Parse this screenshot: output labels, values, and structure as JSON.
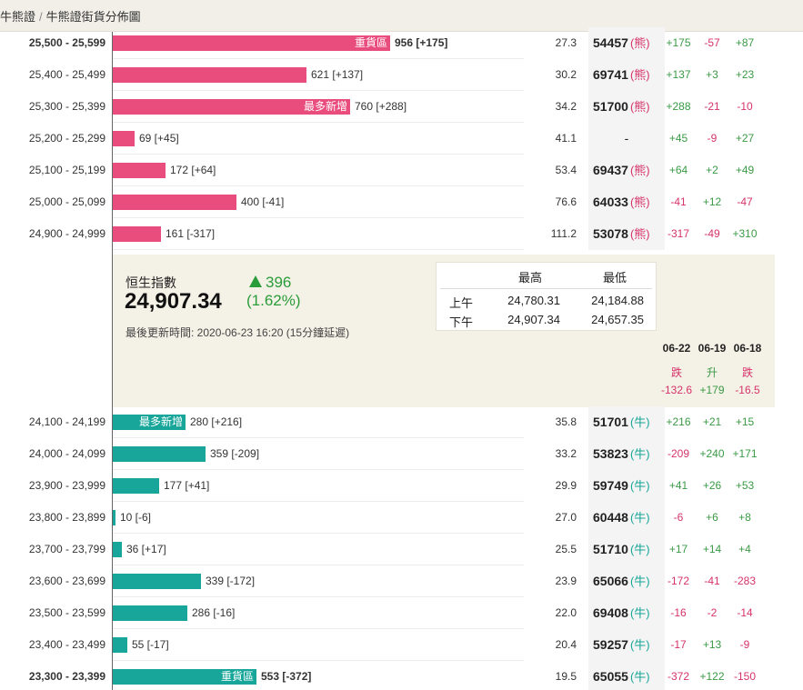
{
  "breadcrumb": {
    "parent": "牛熊證",
    "current": "牛熊證街貨分佈圖"
  },
  "colors": {
    "bear": "#e94d7d",
    "bull": "#17a699",
    "positive": "#3a9a45",
    "negative": "#d6336c"
  },
  "bear_rows": [
    {
      "range": "25,500 - 25,599",
      "qty": "956 [+175]",
      "ratio": "27.3",
      "code": "54457",
      "type": "(熊)",
      "tag": "重貨區",
      "bold": true,
      "level": 0.63,
      "chg": [
        "+175",
        "-57",
        "+87"
      ]
    },
    {
      "range": "25,400 - 25,499",
      "qty": "621 [+137]",
      "ratio": "30.2",
      "code": "69741",
      "type": "(熊)",
      "tag": "",
      "level": 0.44,
      "chg": [
        "+137",
        "+3",
        "+23"
      ]
    },
    {
      "range": "25,300 - 25,399",
      "qty": "760 [+288]",
      "ratio": "34.2",
      "code": "51700",
      "type": "(熊)",
      "tag": "最多新增",
      "level": 0.54,
      "chg": [
        "+288",
        "-21",
        "-10"
      ]
    },
    {
      "range": "25,200 - 25,299",
      "qty": "69 [+45]",
      "ratio": "41.1",
      "code": "-",
      "type": "",
      "tag": "",
      "level": 0.05,
      "chg": [
        "+45",
        "-9",
        "+27"
      ]
    },
    {
      "range": "25,100 - 25,199",
      "qty": "172 [+64]",
      "ratio": "53.4",
      "code": "69437",
      "type": "(熊)",
      "tag": "",
      "level": 0.12,
      "chg": [
        "+64",
        "+2",
        "+49"
      ]
    },
    {
      "range": "25,000 - 25,099",
      "qty": "400 [-41]",
      "ratio": "76.6",
      "code": "64033",
      "type": "(熊)",
      "tag": "",
      "level": 0.28,
      "chg": [
        "-41",
        "+12",
        "-47"
      ]
    },
    {
      "range": "24,900 - 24,999",
      "qty": "161 [-317]",
      "ratio": "111.2",
      "code": "53078",
      "type": "(熊)",
      "tag": "",
      "level": 0.11,
      "chg": [
        "-317",
        "-49",
        "+310"
      ]
    }
  ],
  "index": {
    "name": "恒生指數",
    "value": "24,907.34",
    "change": "396",
    "change_pct": "(1.62%)",
    "updated": "最後更新時間: 2020-06-23 16:20 (15分鐘延遲)",
    "high_low": {
      "header_high": "最高",
      "header_low": "最低",
      "am_label": "上午",
      "am_high": "24,780.31",
      "am_low": "24,184.88",
      "pm_label": "下午",
      "pm_high": "24,907.34",
      "pm_low": "24,657.35"
    },
    "history": [
      {
        "date": "06-22",
        "dir": "跌",
        "points": "-132.6",
        "sign": "neg"
      },
      {
        "date": "06-19",
        "dir": "升",
        "points": "+179",
        "sign": "pos"
      },
      {
        "date": "06-18",
        "dir": "跌",
        "points": "-16.5",
        "sign": "neg"
      }
    ]
  },
  "bull_rows": [
    {
      "range": "24,100 - 24,199",
      "qty": "280 [+216]",
      "ratio": "35.8",
      "code": "51701",
      "type": "(牛)",
      "tag": "最多新增",
      "level": 0.165,
      "chg": [
        "+216",
        "+21",
        "+15"
      ]
    },
    {
      "range": "24,000 - 24,099",
      "qty": "359 [-209]",
      "ratio": "33.2",
      "code": "53823",
      "type": "(牛)",
      "tag": "",
      "level": 0.21,
      "chg": [
        "-209",
        "+240",
        "+171"
      ]
    },
    {
      "range": "23,900 - 23,999",
      "qty": "177 [+41]",
      "ratio": "29.9",
      "code": "59749",
      "type": "(牛)",
      "tag": "",
      "level": 0.105,
      "chg": [
        "+41",
        "+26",
        "+53"
      ]
    },
    {
      "range": "23,800 - 23,899",
      "qty": "10 [-6]",
      "ratio": "27.0",
      "code": "60448",
      "type": "(牛)",
      "tag": "",
      "level": 0.006,
      "chg": [
        "-6",
        "+6",
        "+8"
      ]
    },
    {
      "range": "23,700 - 23,799",
      "qty": "36 [+17]",
      "ratio": "25.5",
      "code": "51710",
      "type": "(牛)",
      "tag": "",
      "level": 0.021,
      "chg": [
        "+17",
        "+14",
        "+4"
      ]
    },
    {
      "range": "23,600 - 23,699",
      "qty": "339 [-172]",
      "ratio": "23.9",
      "code": "65066",
      "type": "(牛)",
      "tag": "",
      "level": 0.2,
      "chg": [
        "-172",
        "-41",
        "-283"
      ]
    },
    {
      "range": "23,500 - 23,599",
      "qty": "286 [-16]",
      "ratio": "22.0",
      "code": "69408",
      "type": "(牛)",
      "tag": "",
      "level": 0.169,
      "chg": [
        "-16",
        "-2",
        "-14"
      ]
    },
    {
      "range": "23,400 - 23,499",
      "qty": "55 [-17]",
      "ratio": "20.4",
      "code": "59257",
      "type": "(牛)",
      "tag": "",
      "level": 0.033,
      "chg": [
        "-17",
        "+13",
        "-9"
      ]
    },
    {
      "range": "23,300 - 23,399",
      "qty": "553 [-372]",
      "ratio": "19.5",
      "code": "65055",
      "type": "(牛)",
      "tag": "重貨區",
      "bold": true,
      "level": 0.327,
      "chg": [
        "-372",
        "+122",
        "-150"
      ]
    }
  ]
}
